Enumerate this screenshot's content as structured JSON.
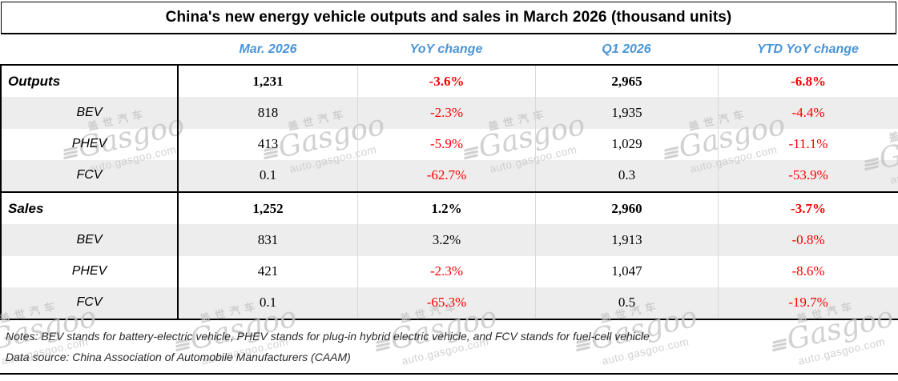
{
  "title": "China's new energy vehicle outputs and sales in March 2026 (thousand units)",
  "columns": [
    "Mar. 2026",
    "YoY change",
    "Q1 2026",
    "YTD YoY change"
  ],
  "table": {
    "sections": [
      {
        "label": "Outputs",
        "values": [
          "1,231",
          "-3.6%",
          "2,965",
          "-6.8%"
        ],
        "rows": [
          {
            "label": "BEV",
            "values": [
              "818",
              "-2.3%",
              "1,935",
              "-4.4%"
            ]
          },
          {
            "label": "PHEV",
            "values": [
              "413",
              "-5.9%",
              "1,029",
              "-11.1%"
            ]
          },
          {
            "label": "FCV",
            "values": [
              "0.1",
              "-62.7%",
              "0.3",
              "-53.9%"
            ]
          }
        ]
      },
      {
        "label": "Sales",
        "values": [
          "1,252",
          "1.2%",
          "2,960",
          "-3.7%"
        ],
        "rows": [
          {
            "label": "BEV",
            "values": [
              "831",
              "3.2%",
              "1,913",
              "-0.8%"
            ]
          },
          {
            "label": "PHEV",
            "values": [
              "421",
              "-2.3%",
              "1,047",
              "-8.6%"
            ]
          },
          {
            "label": "FCV",
            "values": [
              "0.1",
              "-65.3%",
              "0.5",
              "-19.7%"
            ]
          }
        ]
      }
    ]
  },
  "notes": "Notes: BEV stands for battery-electric vehicle, PHEV stands for plug-in hybrid electric vehicle, and FCV stands for fuel-cell vehicle",
  "data_source": "Data source: China Association of Automobile Manufacturers (CAAM)",
  "watermark": {
    "cn": "盖世汽车",
    "brand": "Gasgoo",
    "bars": "≡",
    "url": "auto.gasgoo.com"
  },
  "colors": {
    "header_blue": "#4a94d8",
    "negative_red": "#fb0000",
    "stripe_gray": "#ededed",
    "border_black": "#000000",
    "watermark_gray": "#c6c6c6"
  },
  "chart_data": {
    "type": "table",
    "title": "China's new energy vehicle outputs and sales in March 2026 (thousand units)",
    "unit": "thousand units",
    "columns": [
      "Mar. 2026",
      "YoY change",
      "Q1 2026",
      "YTD YoY change"
    ],
    "rows": [
      {
        "group": "Outputs",
        "label": "Outputs",
        "mar_2026": 1231,
        "yoy_change_pct": -3.6,
        "q1_2026": 2965,
        "ytd_yoy_change_pct": -6.8
      },
      {
        "group": "Outputs",
        "label": "BEV",
        "mar_2026": 818,
        "yoy_change_pct": -2.3,
        "q1_2026": 1935,
        "ytd_yoy_change_pct": -4.4
      },
      {
        "group": "Outputs",
        "label": "PHEV",
        "mar_2026": 413,
        "yoy_change_pct": -5.9,
        "q1_2026": 1029,
        "ytd_yoy_change_pct": -11.1
      },
      {
        "group": "Outputs",
        "label": "FCV",
        "mar_2026": 0.1,
        "yoy_change_pct": -62.7,
        "q1_2026": 0.3,
        "ytd_yoy_change_pct": -53.9
      },
      {
        "group": "Sales",
        "label": "Sales",
        "mar_2026": 1252,
        "yoy_change_pct": 1.2,
        "q1_2026": 2960,
        "ytd_yoy_change_pct": -3.7
      },
      {
        "group": "Sales",
        "label": "BEV",
        "mar_2026": 831,
        "yoy_change_pct": 3.2,
        "q1_2026": 1913,
        "ytd_yoy_change_pct": -0.8
      },
      {
        "group": "Sales",
        "label": "PHEV",
        "mar_2026": 421,
        "yoy_change_pct": -2.3,
        "q1_2026": 1047,
        "ytd_yoy_change_pct": -8.6
      },
      {
        "group": "Sales",
        "label": "FCV",
        "mar_2026": 0.1,
        "yoy_change_pct": -65.3,
        "q1_2026": 0.5,
        "ytd_yoy_change_pct": -19.7
      }
    ]
  }
}
